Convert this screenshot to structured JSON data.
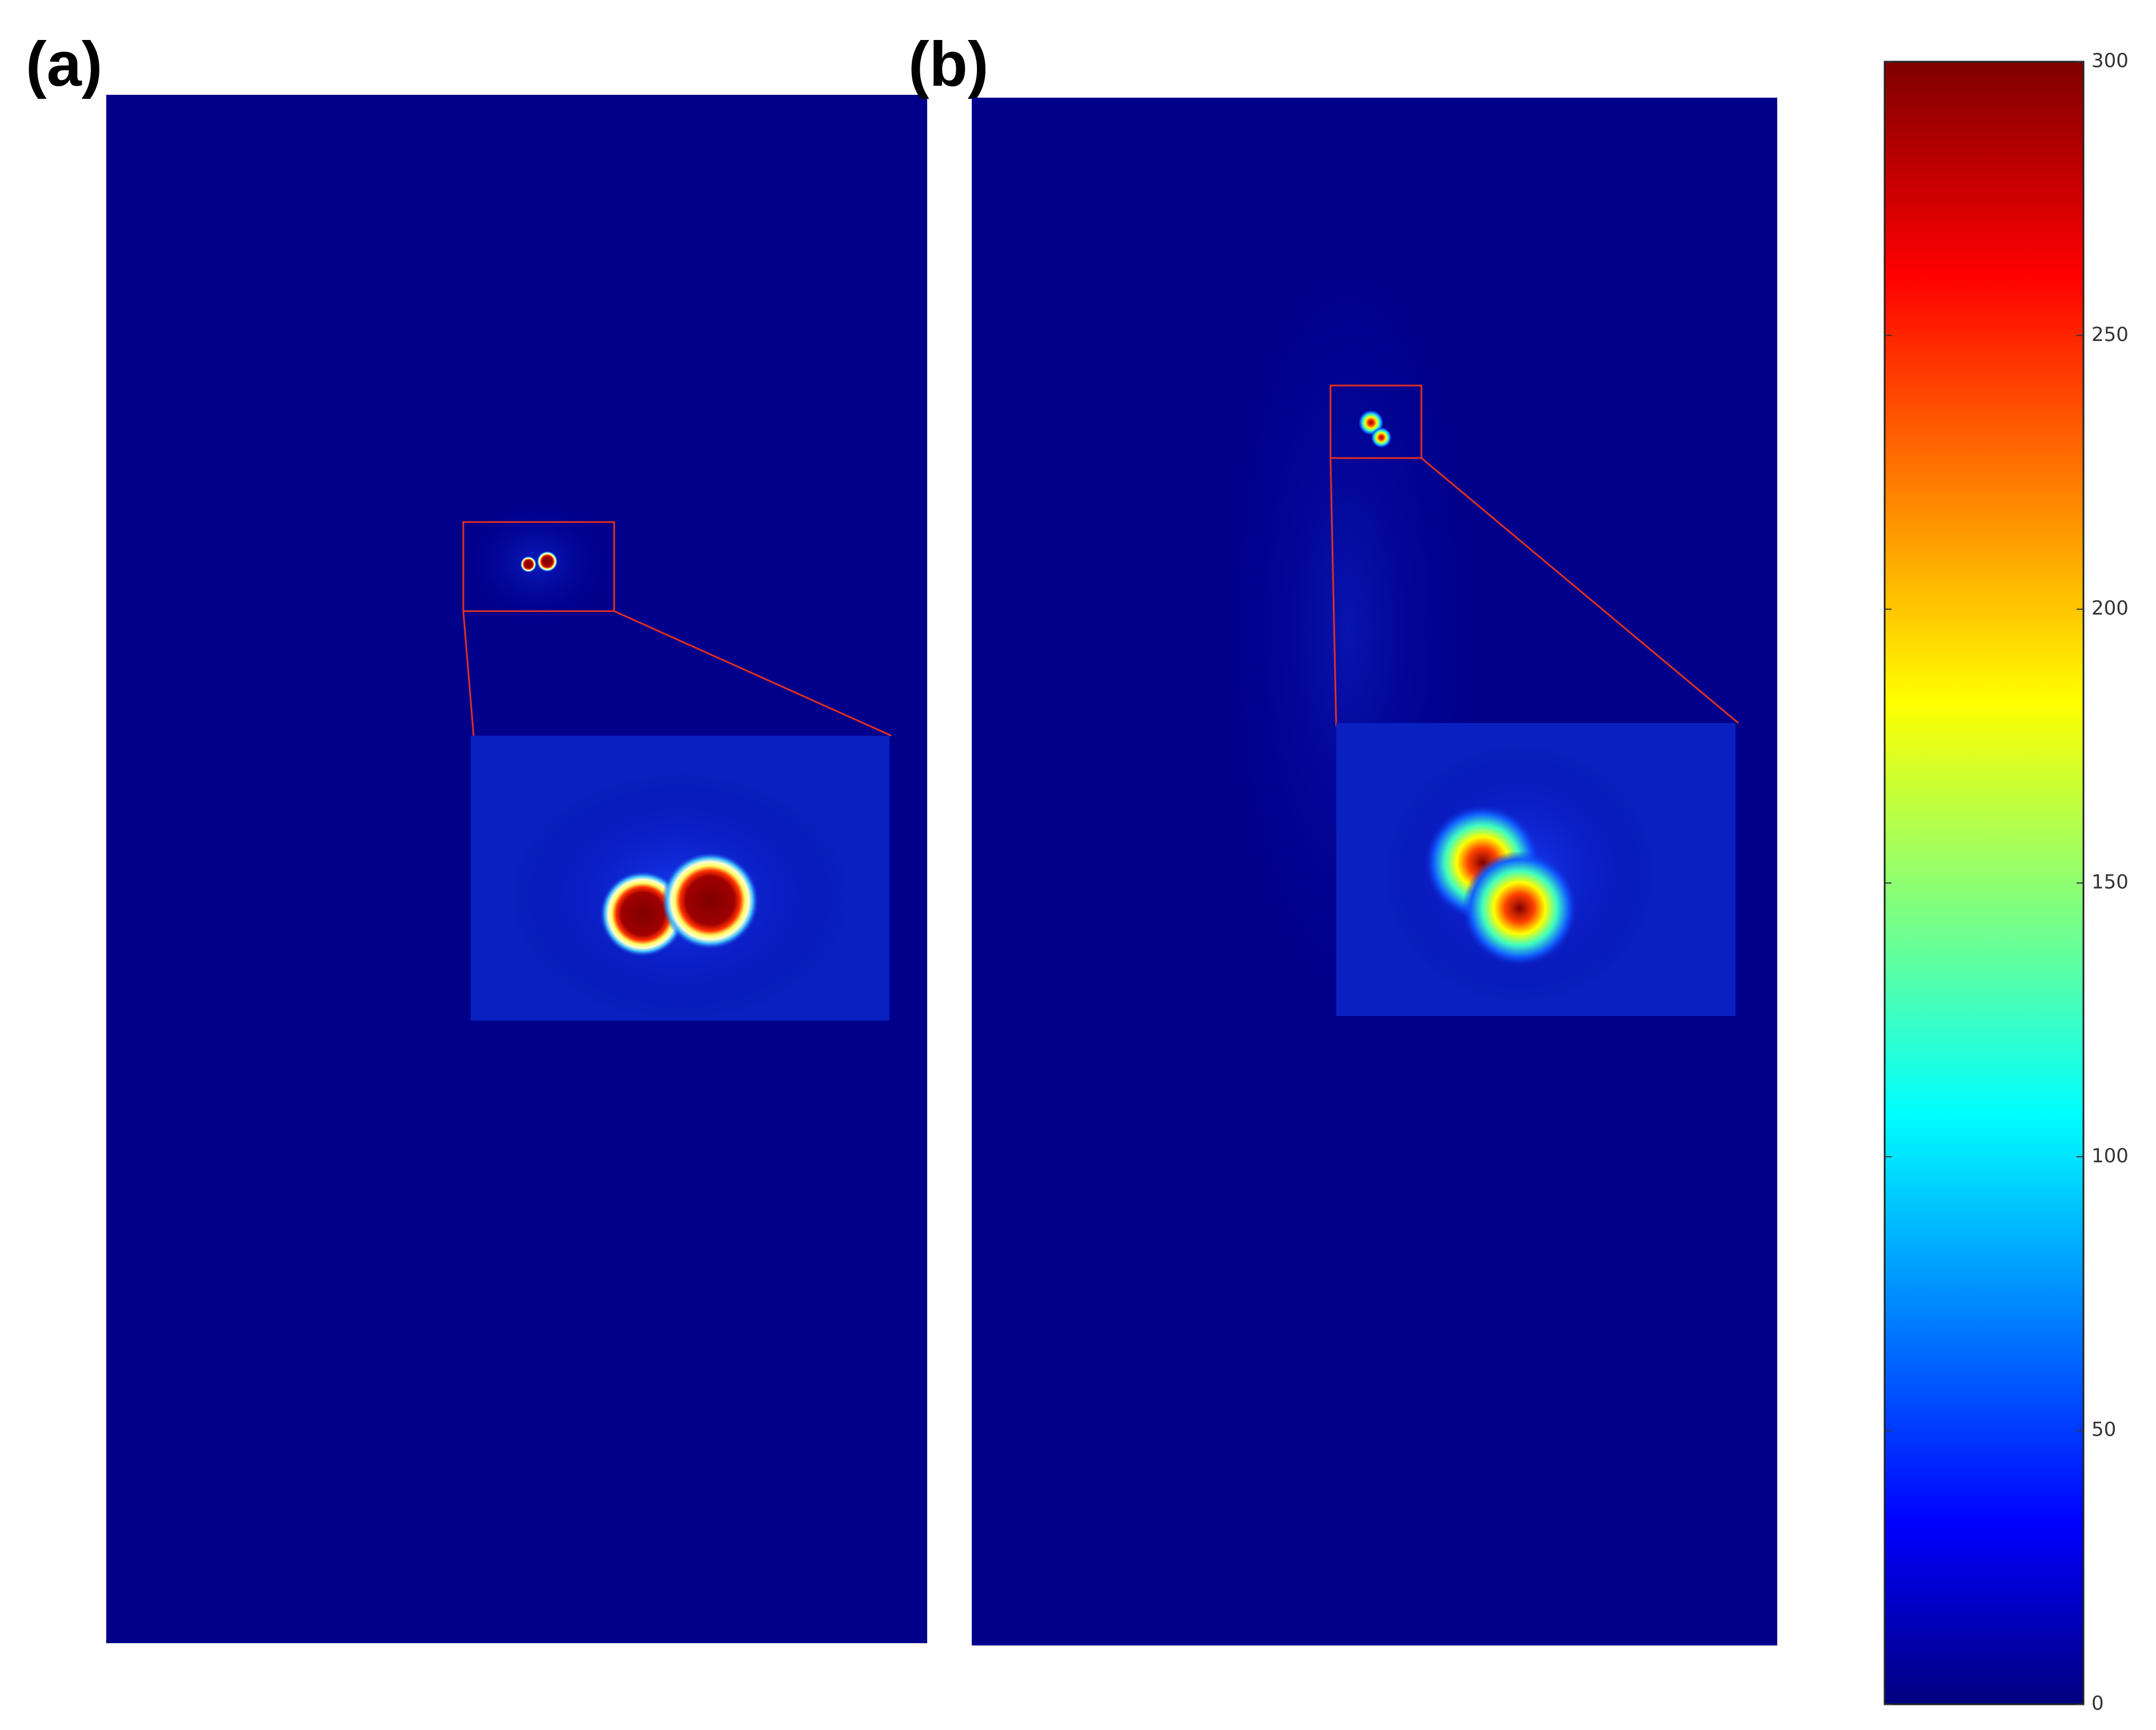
{
  "chart_data": {
    "type": "heatmap",
    "panel_labels": [
      "(a)",
      "(b)"
    ],
    "colormap": "jet",
    "ylim": [
      0,
      300
    ],
    "yticks": [
      0,
      50,
      100,
      150,
      200,
      250,
      300
    ]
  }
}
